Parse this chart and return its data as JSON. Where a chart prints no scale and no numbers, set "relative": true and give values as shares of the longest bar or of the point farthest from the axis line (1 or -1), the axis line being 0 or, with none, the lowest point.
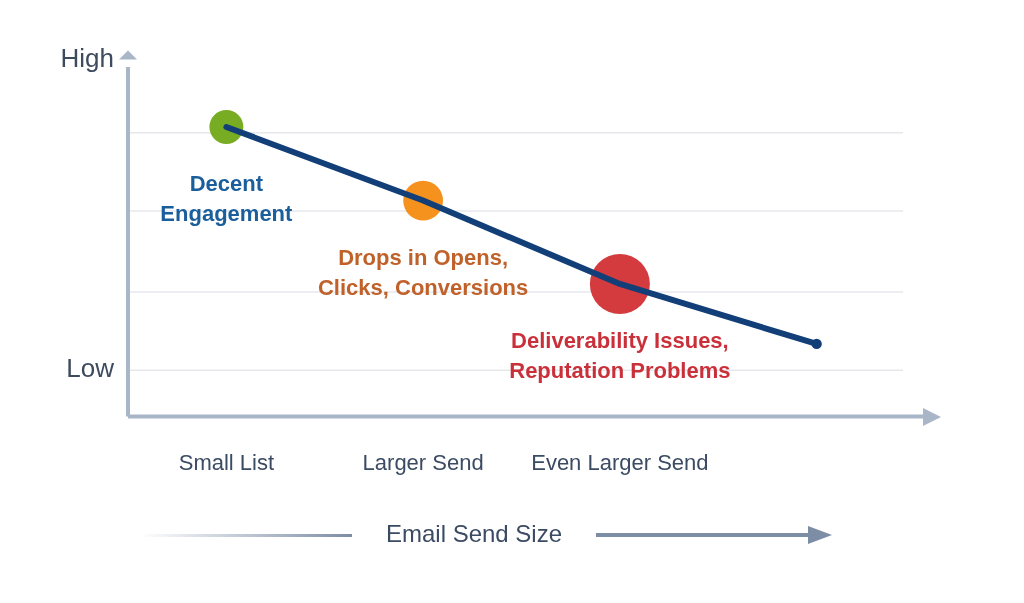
{
  "chart_data": {
    "type": "line",
    "relative": true,
    "xlabel": "Email Send Size",
    "categories": [
      "Small List",
      "Larger Send",
      "Even Larger Send",
      null
    ],
    "series": [
      {
        "color": "#123f78",
        "marker": "none",
        "values": [
          1,
          0.746,
          0.458,
          0.251
        ]
      },
      {
        "type": "bubble",
        "colors": [
          "#78ad23",
          "#f5921e",
          "#d33b3e",
          "#123f78"
        ],
        "values": [
          1,
          0.746,
          0.458,
          0.251
        ],
        "sizes": [
          0.32,
          0.44,
          1,
          0.03
        ]
      }
    ],
    "line_style": "solid",
    "grid": "y",
    "legend": false,
    "annotations": [
      "High",
      "Low",
      {
        "text": "Decent Engagement",
        "x": "Small List",
        "y": 1
      },
      {
        "text": "Drops in Opens, Clicks, Conversions",
        "x": "Larger Send",
        "y": 0.746
      },
      {
        "text": "Deliverability Issues, Reputation Problems",
        "x": "Even Larger Send",
        "y": 0.458
      }
    ]
  }
}
